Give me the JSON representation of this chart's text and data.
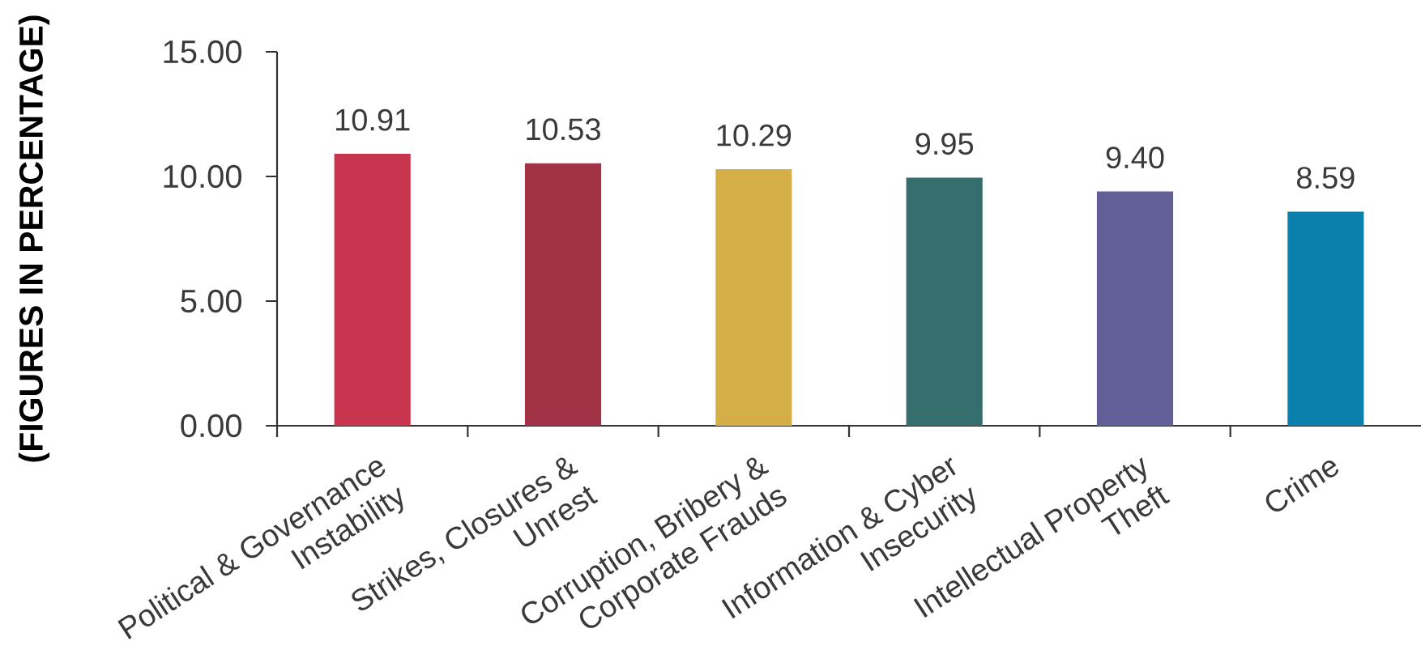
{
  "chart_data": {
    "type": "bar",
    "ylabel": "(FIGURES IN PERCENTAGE)",
    "categories": [
      "Political & Governance Instability",
      "Strikes, Closures & Unrest",
      "Corruption, Bribery & Corporate Frauds",
      "Information & Cyber Insecurity",
      "Intellectual Property Theft",
      "Crime"
    ],
    "values": [
      10.91,
      10.53,
      10.29,
      9.95,
      9.4,
      8.59
    ],
    "value_labels": [
      "10.91",
      "10.53",
      "10.29",
      "9.95",
      "9.40",
      "8.59"
    ],
    "colors": [
      "#c8354e",
      "#a23346",
      "#d4af47",
      "#366e6e",
      "#615e98",
      "#0c80ad"
    ],
    "ylim": [
      0,
      15
    ],
    "yticks": [
      {
        "value": 0,
        "label": "0.00"
      },
      {
        "value": 5,
        "label": "5.00"
      },
      {
        "value": 10,
        "label": "10.00"
      },
      {
        "value": 15,
        "label": "15.00"
      }
    ],
    "grid": false
  }
}
